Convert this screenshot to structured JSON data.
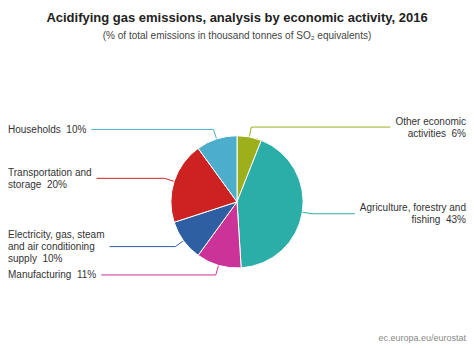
{
  "chart_data": {
    "type": "pie",
    "title": "Acidifying gas emissions, analysis by economic activity, 2016",
    "subtitle": "(% of total emissions in thousand tonnes of SO₂ equivalents)",
    "categories": [
      "Other economic\nactivities  6%",
      "Agriculture, forestry and\nfishing  43%",
      "Manufacturing  11%",
      "Electricity, gas, steam\nand air conditioning\nsupply  10%",
      "Transportation and\nstorage  20%",
      "Households  10%"
    ],
    "values": [
      6,
      43,
      11,
      10,
      20,
      10
    ],
    "colors": [
      "#9DAF1A",
      "#2BADA8",
      "#CC3399",
      "#2E5FA3",
      "#CC2222",
      "#4DAECC"
    ],
    "annotations": [
      "ec.europa.eu/eurostat"
    ]
  }
}
